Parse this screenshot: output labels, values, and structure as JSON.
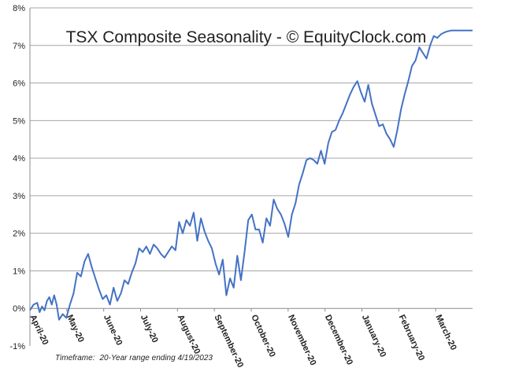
{
  "chart_data": {
    "type": "line",
    "title": "TSX Composite Seasonality - © EquityClock.com",
    "xlabel": "",
    "ylabel": "",
    "ylim": [
      -1,
      8
    ],
    "ytick_labels": [
      "-1%",
      "0%",
      "1%",
      "2%",
      "3%",
      "4%",
      "5%",
      "6%",
      "7%",
      "8%"
    ],
    "ytick_values": [
      -1,
      0,
      1,
      2,
      3,
      4,
      5,
      6,
      7,
      8
    ],
    "xtick_labels": [
      "April-20",
      "May-20",
      "June-20",
      "July-20",
      "August-20",
      "September-20",
      "October-20",
      "November-20",
      "December-20",
      "January-20",
      "February-20",
      "March-20"
    ],
    "xlim": [
      0,
      365
    ],
    "grid": "horizontal",
    "line_color": "#4472C4",
    "series": [
      {
        "x": [
          0,
          3,
          6,
          8,
          10,
          12,
          14,
          16,
          18,
          20,
          22,
          24,
          27,
          30,
          33,
          36,
          39,
          42,
          45,
          48,
          51,
          54,
          57,
          60,
          63,
          66,
          69,
          72,
          75,
          78,
          81,
          84,
          87,
          90,
          93,
          96,
          99,
          102,
          105,
          108,
          111,
          114,
          117,
          120,
          123,
          126,
          129,
          132,
          135,
          138,
          141,
          144,
          147,
          150,
          153,
          156,
          159,
          162,
          165,
          168,
          171,
          174,
          177,
          180,
          183,
          186,
          189,
          192,
          195,
          198,
          201,
          204,
          207,
          210,
          213,
          216,
          219,
          222,
          225,
          228,
          231,
          234,
          237,
          240,
          243,
          246,
          249,
          252,
          255,
          258,
          261,
          264,
          267,
          270,
          273,
          276,
          279,
          282,
          285,
          288,
          291,
          294,
          297,
          300,
          303,
          306,
          309,
          312,
          315,
          318,
          321,
          324,
          327,
          330,
          333,
          336,
          339,
          342,
          345,
          348,
          351,
          354,
          357,
          360,
          363,
          365
        ],
        "values": [
          -0.05,
          0.1,
          0.15,
          -0.1,
          0.05,
          -0.05,
          0.2,
          0.3,
          0.1,
          0.35,
          0.1,
          -0.3,
          -0.15,
          -0.25,
          0.1,
          0.4,
          0.95,
          0.85,
          1.25,
          1.45,
          1.1,
          0.8,
          0.5,
          0.25,
          0.35,
          0.1,
          0.55,
          0.2,
          0.4,
          0.75,
          0.65,
          0.95,
          1.2,
          1.6,
          1.5,
          1.65,
          1.45,
          1.7,
          1.6,
          1.45,
          1.35,
          1.5,
          1.65,
          1.55,
          2.3,
          2.0,
          2.35,
          2.2,
          2.55,
          1.8,
          2.4,
          2.05,
          1.8,
          1.6,
          1.2,
          0.9,
          1.3,
          0.35,
          0.8,
          0.55,
          1.4,
          0.75,
          1.5,
          2.35,
          2.5,
          2.1,
          2.1,
          1.75,
          2.4,
          2.2,
          2.9,
          2.65,
          2.5,
          2.25,
          1.9,
          2.5,
          2.8,
          3.3,
          3.6,
          3.95,
          4.0,
          3.95,
          3.85,
          4.2,
          3.85,
          4.4,
          4.7,
          4.75,
          5.0,
          5.2,
          5.45,
          5.7,
          5.9,
          6.05,
          5.75,
          5.5,
          5.95,
          5.45,
          5.15,
          4.85,
          4.9,
          4.65,
          4.5,
          4.3,
          4.75,
          5.3,
          5.7,
          6.05,
          6.45,
          6.6,
          6.95,
          6.8,
          6.65,
          7.0,
          7.25,
          7.2,
          7.3,
          7.35,
          7.38,
          7.4,
          7.4,
          7.4,
          7.4,
          7.4,
          7.4,
          7.4
        ]
      }
    ]
  },
  "footer": {
    "timeframe_label": "Timeframe:",
    "timeframe_value": "20-Year  range ending 4/19/2023"
  }
}
